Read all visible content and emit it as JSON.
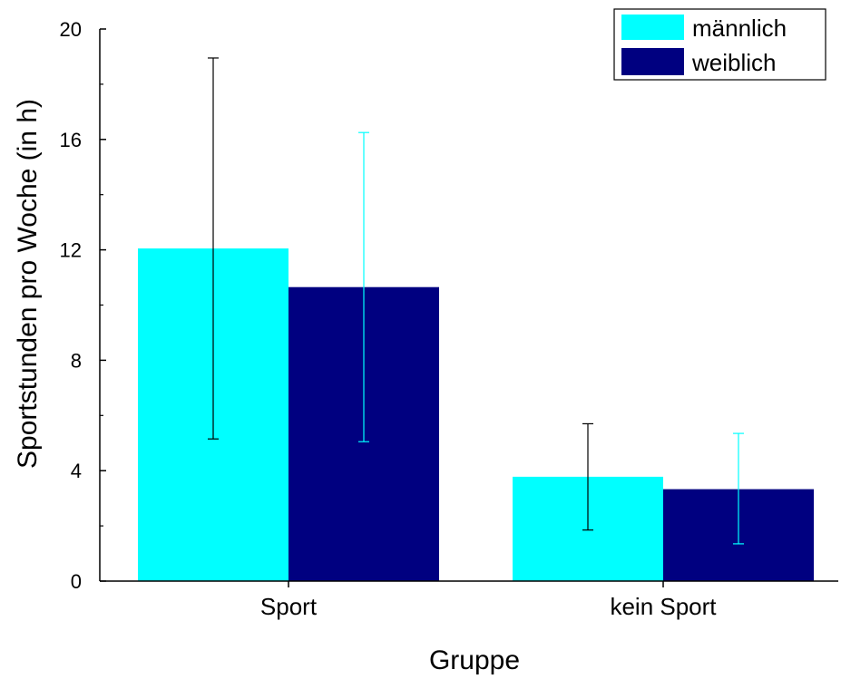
{
  "chart_data": {
    "type": "bar",
    "categories": [
      "Sport",
      "kein Sport"
    ],
    "series": [
      {
        "name": "männlich",
        "color": "#00FFFF",
        "values": [
          12.05,
          3.78
        ],
        "error": [
          {
            "low": 5.15,
            "high": 18.95
          },
          {
            "low": 1.85,
            "high": 5.7
          }
        ]
      },
      {
        "name": "weiblich",
        "color": "#000080",
        "values": [
          10.65,
          3.33
        ],
        "error": [
          {
            "low": 5.05,
            "high": 16.25
          },
          {
            "low": 1.35,
            "high": 5.35
          }
        ]
      }
    ],
    "error_bar_colors": [
      "#000000",
      "#00FFFF"
    ],
    "xlabel": "Gruppe",
    "ylabel": "Sportstunden pro Woche (in h)",
    "ylim": [
      0,
      20
    ],
    "yticks": [
      0,
      4,
      8,
      12,
      16,
      20
    ],
    "grid": false,
    "legend_position": "top-right"
  }
}
